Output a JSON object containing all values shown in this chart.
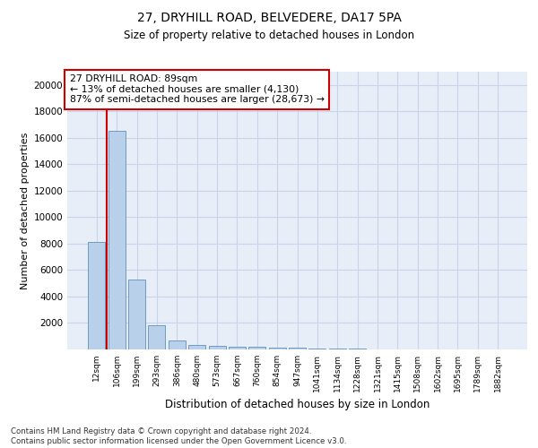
{
  "title1": "27, DRYHILL ROAD, BELVEDERE, DA17 5PA",
  "title2": "Size of property relative to detached houses in London",
  "xlabel": "Distribution of detached houses by size in London",
  "ylabel": "Number of detached properties",
  "categories": [
    "12sqm",
    "106sqm",
    "199sqm",
    "293sqm",
    "386sqm",
    "480sqm",
    "573sqm",
    "667sqm",
    "760sqm",
    "854sqm",
    "947sqm",
    "1041sqm",
    "1134sqm",
    "1228sqm",
    "1321sqm",
    "1415sqm",
    "1508sqm",
    "1602sqm",
    "1695sqm",
    "1789sqm",
    "1882sqm"
  ],
  "values": [
    8100,
    16500,
    5300,
    1800,
    700,
    350,
    280,
    230,
    190,
    160,
    120,
    80,
    55,
    40,
    25,
    18,
    12,
    9,
    7,
    5,
    4
  ],
  "bar_color": "#b8d0ea",
  "bar_edge_color": "#6090bb",
  "grid_color": "#c8d4e8",
  "background_color": "#e8eef8",
  "vline_color": "#cc0000",
  "vline_x": 0.5,
  "annotation_text": "27 DRYHILL ROAD: 89sqm\n← 13% of detached houses are smaller (4,130)\n87% of semi-detached houses are larger (28,673) →",
  "annotation_box_color": "#ffffff",
  "annotation_box_edge": "#cc0000",
  "footer_text": "Contains HM Land Registry data © Crown copyright and database right 2024.\nContains public sector information licensed under the Open Government Licence v3.0.",
  "ylim": [
    0,
    21000
  ],
  "yticks": [
    0,
    2000,
    4000,
    6000,
    8000,
    10000,
    12000,
    14000,
    16000,
    18000,
    20000
  ]
}
